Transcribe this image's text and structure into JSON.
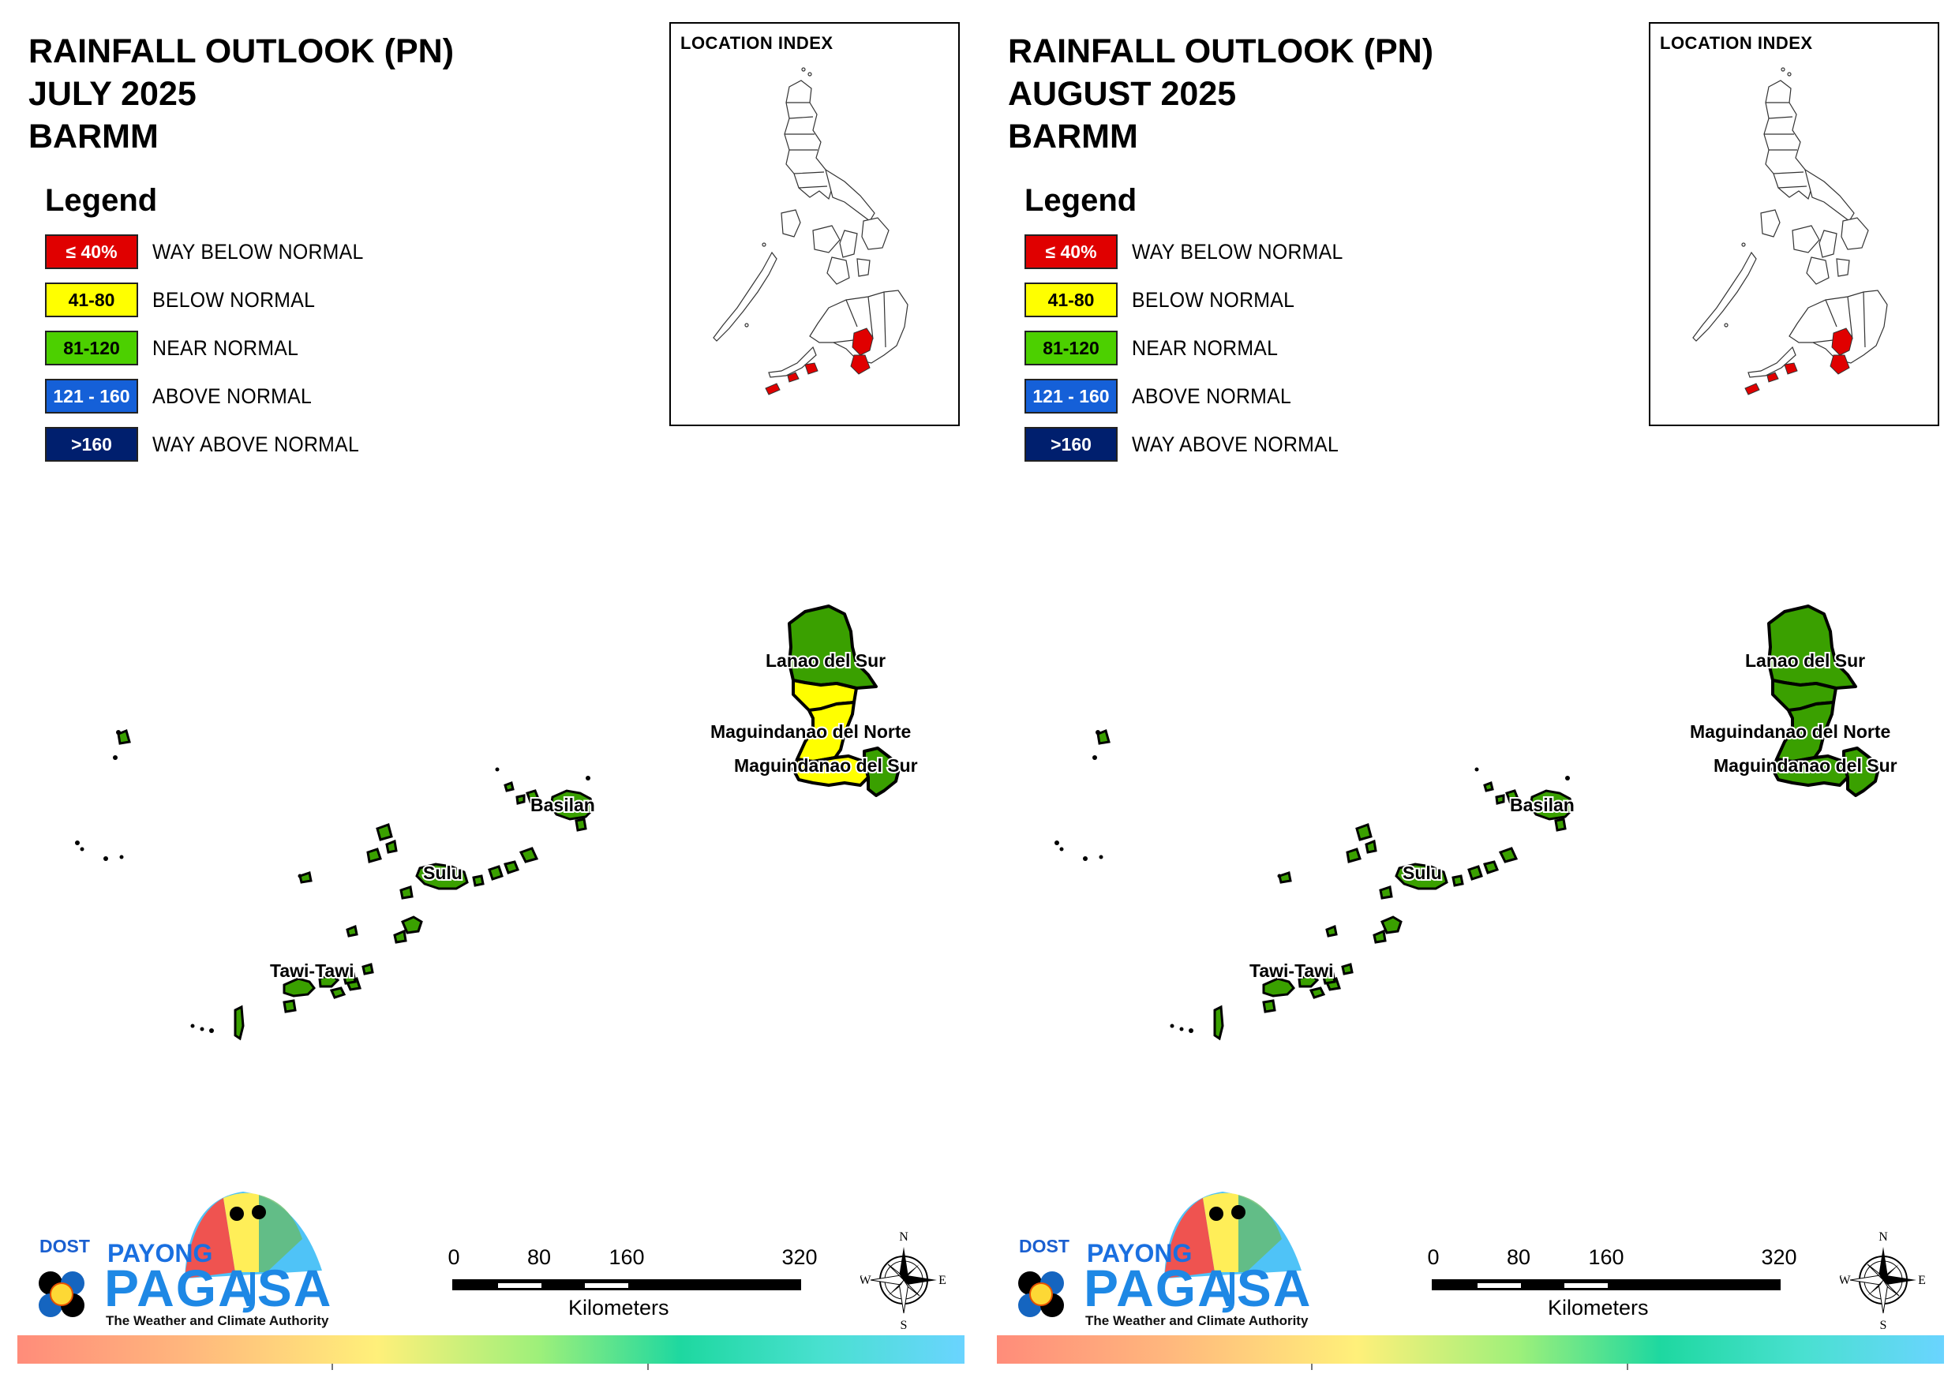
{
  "panels": [
    {
      "title_lines": [
        "RAINFALL OUTLOOK (PN)",
        "JULY 2025",
        "BARMM"
      ],
      "legend": {
        "title": "Legend",
        "items": [
          {
            "code": "≤ 40%",
            "label": "WAY BELOW NORMAL",
            "color": "#e00000",
            "text_color": "#ffffff"
          },
          {
            "code": "41-80",
            "label": "BELOW NORMAL",
            "color": "#ffff00",
            "text_color": "#000000"
          },
          {
            "code": "81-120",
            "label": "NEAR NORMAL",
            "color": "#4cd000",
            "text_color": "#000000"
          },
          {
            "code": "121 - 160",
            "label": "ABOVE NORMAL",
            "color": "#1560d8",
            "text_color": "#ffffff"
          },
          {
            "code": ">160",
            "label": "WAY ABOVE NORMAL",
            "color": "#001f6e",
            "text_color": "#ffffff"
          }
        ]
      },
      "inset_title": "LOCATION INDEX",
      "provinces": [
        {
          "name": "Lanao del Sur",
          "category": "mixed",
          "fill_north": "#3aa000",
          "fill_south": "#ffff00"
        },
        {
          "name": "Maguindanao del Norte",
          "category": "BELOW NORMAL",
          "fill": "#ffff00"
        },
        {
          "name": "Maguindanao del Sur",
          "category": "mixed",
          "fill": "#ffff00",
          "fill_east": "#3aa000"
        },
        {
          "name": "Basilan",
          "category": "NEAR NORMAL",
          "fill": "#3aa000"
        },
        {
          "name": "Sulu",
          "category": "NEAR NORMAL",
          "fill": "#3aa000"
        },
        {
          "name": "Tawi-Tawi",
          "category": "NEAR NORMAL",
          "fill": "#3aa000"
        }
      ]
    },
    {
      "title_lines": [
        "RAINFALL OUTLOOK (PN)",
        "AUGUST 2025",
        "BARMM"
      ],
      "legend": {
        "title": "Legend",
        "items": [
          {
            "code": "≤ 40%",
            "label": "WAY BELOW NORMAL",
            "color": "#e00000",
            "text_color": "#ffffff"
          },
          {
            "code": "41-80",
            "label": "BELOW NORMAL",
            "color": "#ffff00",
            "text_color": "#000000"
          },
          {
            "code": "81-120",
            "label": "NEAR NORMAL",
            "color": "#4cd000",
            "text_color": "#000000"
          },
          {
            "code": "121 - 160",
            "label": "ABOVE NORMAL",
            "color": "#1560d8",
            "text_color": "#ffffff"
          },
          {
            "code": ">160",
            "label": "WAY ABOVE NORMAL",
            "color": "#001f6e",
            "text_color": "#ffffff"
          }
        ]
      },
      "inset_title": "LOCATION INDEX",
      "provinces": [
        {
          "name": "Lanao del Sur",
          "category": "NEAR NORMAL",
          "fill_north": "#3aa000",
          "fill_south": "#3aa000"
        },
        {
          "name": "Maguindanao del Norte",
          "category": "NEAR NORMAL",
          "fill": "#3aa000"
        },
        {
          "name": "Maguindanao del Sur",
          "category": "NEAR NORMAL",
          "fill": "#3aa000",
          "fill_east": "#3aa000"
        },
        {
          "name": "Basilan",
          "category": "NEAR NORMAL",
          "fill": "#3aa000"
        },
        {
          "name": "Sulu",
          "category": "NEAR NORMAL",
          "fill": "#3aa000"
        },
        {
          "name": "Tawi-Tawi",
          "category": "NEAR NORMAL",
          "fill": "#3aa000"
        }
      ]
    }
  ],
  "footer": {
    "dost": "DOST",
    "payong": "PAYONG",
    "pagasa": "PAGASA",
    "tagline": "The Weather and Climate Authority",
    "scale_ticks": [
      "0",
      "80",
      "160",
      "320"
    ],
    "scale_unit": "Kilometers",
    "compass": {
      "n": "N",
      "s": "S",
      "e": "E",
      "w": "W"
    }
  }
}
